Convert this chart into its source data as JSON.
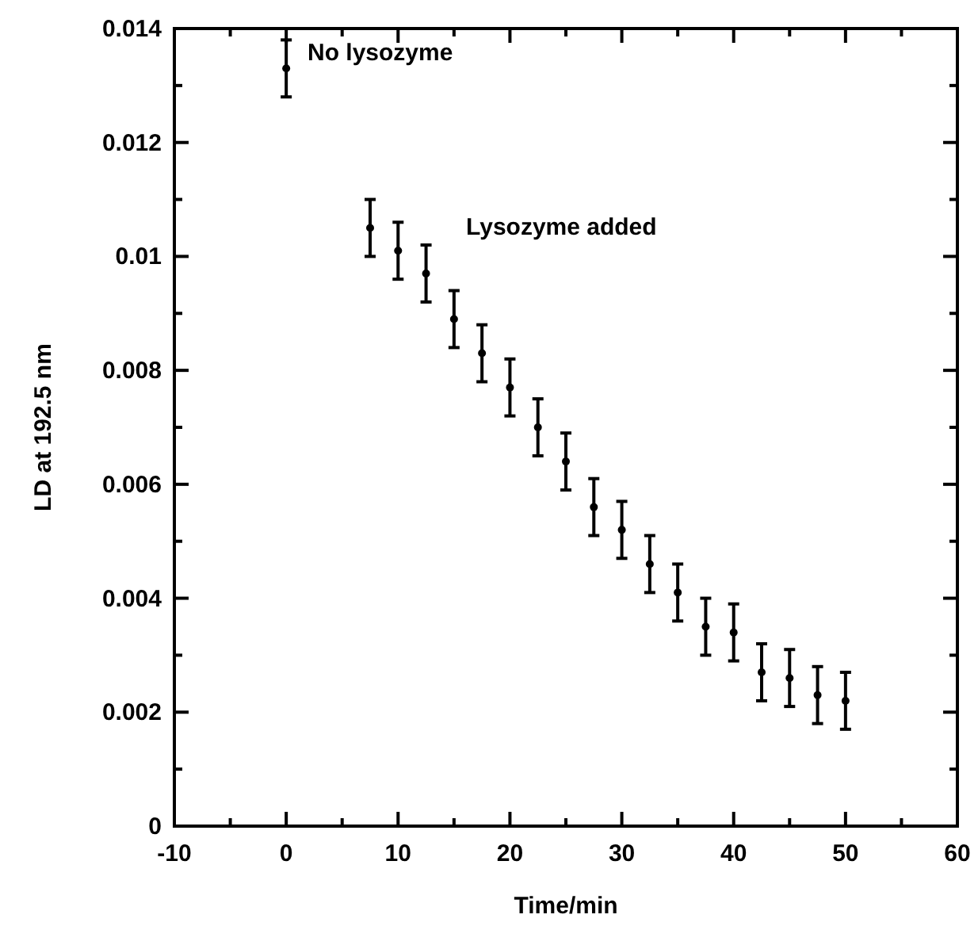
{
  "chart_data": {
    "type": "scatter",
    "xlabel": "Time/min",
    "ylabel": "LD at 192.5 nm",
    "x": [
      0,
      7.5,
      10,
      12.5,
      15,
      17.5,
      20,
      22.5,
      25,
      27.5,
      30,
      32.5,
      35,
      37.5,
      40,
      42.5,
      45,
      47.5,
      50
    ],
    "series": [
      {
        "color": "#000000",
        "values": [
          0.0133,
          0.0105,
          0.0101,
          0.0097,
          0.0089,
          0.0083,
          0.0077,
          0.007,
          0.0064,
          0.0056,
          0.0052,
          0.0046,
          0.0041,
          0.0035,
          0.0034,
          0.0027,
          0.0026,
          0.0023,
          0.0022
        ],
        "errors": [
          0.0005,
          0.0005,
          0.0005,
          0.0005,
          0.0005,
          0.0005,
          0.0005,
          0.0005,
          0.0005,
          0.0005,
          0.0005,
          0.0005,
          0.0005,
          0.0005,
          0.0005,
          0.0005,
          0.0005,
          0.0005,
          0.0005
        ]
      }
    ],
    "xlim": [
      -10,
      60
    ],
    "xticks": [
      -10,
      {
        "value": -5,
        "label": null
      },
      0,
      {
        "value": 5,
        "label": null
      },
      10,
      {
        "value": 15,
        "label": null
      },
      20,
      {
        "value": 25,
        "label": null
      },
      30,
      {
        "value": 35,
        "label": null
      },
      40,
      {
        "value": 45,
        "label": null
      },
      50,
      {
        "value": 55,
        "label": null
      },
      60
    ],
    "ylim": [
      0,
      0.014
    ],
    "yticks": [
      0,
      {
        "value": 0.001,
        "label": null
      },
      0.002,
      {
        "value": 0.003,
        "label": null
      },
      0.004,
      {
        "value": 0.005,
        "label": null
      },
      0.006,
      {
        "value": 0.007,
        "label": null
      },
      0.008,
      {
        "value": 0.009,
        "label": null
      },
      0.01,
      {
        "value": 0.011,
        "label": null
      },
      0.012,
      {
        "value": 0.013,
        "label": null
      },
      0.014
    ],
    "marker": "circle",
    "grid": false,
    "annotations": [
      "No lysozyme",
      "Lysozyme added"
    ]
  }
}
